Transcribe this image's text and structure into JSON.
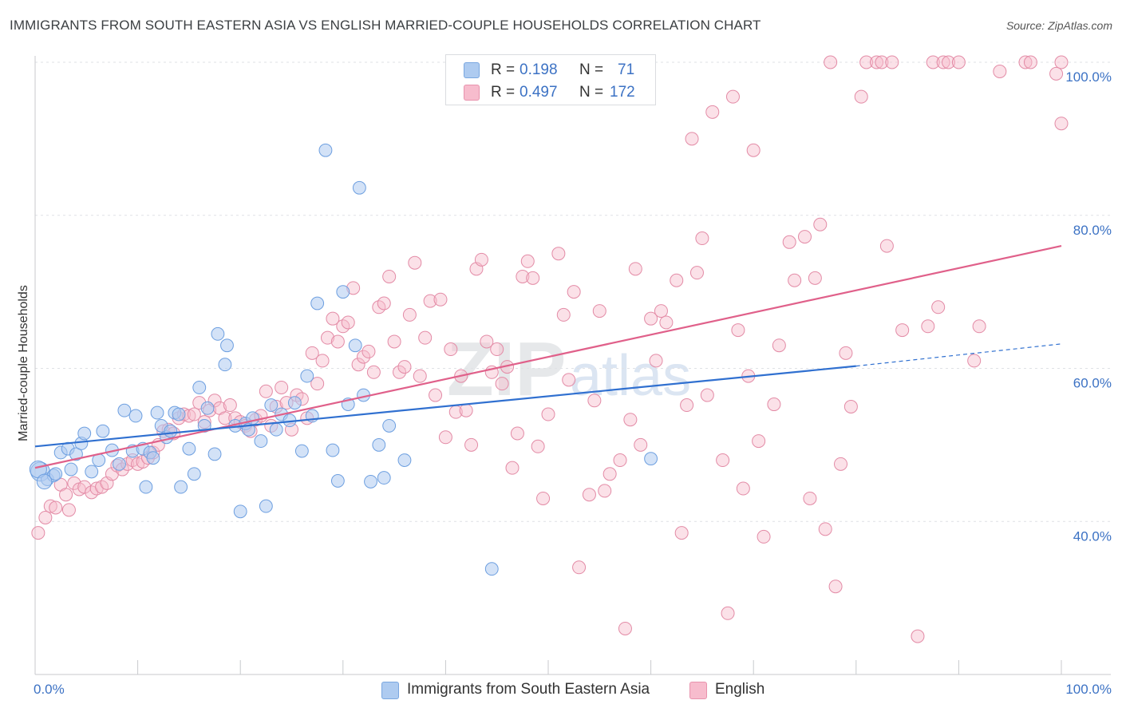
{
  "header": {
    "title": "IMMIGRANTS FROM SOUTH EASTERN ASIA VS ENGLISH MARRIED-COUPLE HOUSEHOLDS CORRELATION CHART",
    "source": "Source: ZipAtlas.com"
  },
  "legend": {
    "rows": [
      {
        "r_label": "R =",
        "r_value": "0.198",
        "n_label": "N =",
        "n_value": "71",
        "color": "#aecbf0"
      },
      {
        "r_label": "R =",
        "r_value": "0.497",
        "n_label": "N =",
        "n_value": "172",
        "color": "#f7bccd"
      }
    ]
  },
  "bottom_legend": {
    "items": [
      {
        "label": "Immigrants from South Eastern Asia",
        "color": "#aecbf0"
      },
      {
        "label": "English",
        "color": "#f7bccd"
      }
    ]
  },
  "watermark": {
    "zip": "ZIP",
    "atlas": "atlas"
  },
  "chart_data": {
    "type": "scatter",
    "title": "IMMIGRANTS FROM SOUTH EASTERN ASIA VS ENGLISH MARRIED-COUPLE HOUSEHOLDS CORRELATION CHART",
    "xlabel": "",
    "ylabel": "Married-couple Households",
    "xlim": [
      0,
      100
    ],
    "ylim": [
      20,
      100
    ],
    "x_tick_labels": [
      "0.0%",
      "100.0%"
    ],
    "y_tick_labels": [
      "40.0%",
      "60.0%",
      "80.0%",
      "100.0%"
    ],
    "y_ticks": [
      40,
      60,
      80,
      100
    ],
    "grid": true,
    "colors": {
      "blue": "#3070d0",
      "pink": "#e0608a",
      "blue_fill": "#aecbf0",
      "pink_fill": "#f7bccd"
    },
    "series": [
      {
        "name": "Immigrants from South Eastern Asia",
        "color": "#aecbf0",
        "stroke": "#6d9fe0",
        "trend": {
          "x0": 0,
          "y0": 49.8,
          "x1": 80,
          "y1": 60.3,
          "dash_x1": 100,
          "dash_y1": 63.2
        },
        "points": [
          [
            0.5,
            46.5
          ],
          [
            1.2,
            45.5
          ],
          [
            1.8,
            46.0
          ],
          [
            2.5,
            49.0
          ],
          [
            3.2,
            49.5
          ],
          [
            3.5,
            46.8
          ],
          [
            4.0,
            48.8
          ],
          [
            4.5,
            50.2
          ],
          [
            4.8,
            51.5
          ],
          [
            5.5,
            46.5
          ],
          [
            6.2,
            48.0
          ],
          [
            6.6,
            51.8
          ],
          [
            7.5,
            49.3
          ],
          [
            8.2,
            47.5
          ],
          [
            8.7,
            54.5
          ],
          [
            9.5,
            49.2
          ],
          [
            9.8,
            53.8
          ],
          [
            10.5,
            49.5
          ],
          [
            10.8,
            44.5
          ],
          [
            11.2,
            49.0
          ],
          [
            11.5,
            48.3
          ],
          [
            11.9,
            54.2
          ],
          [
            12.3,
            52.5
          ],
          [
            12.8,
            51.0
          ],
          [
            13.2,
            51.8
          ],
          [
            13.6,
            54.2
          ],
          [
            14.0,
            54.0
          ],
          [
            14.2,
            44.5
          ],
          [
            15.0,
            49.5
          ],
          [
            15.5,
            46.2
          ],
          [
            16.0,
            57.5
          ],
          [
            16.5,
            52.5
          ],
          [
            16.8,
            54.8
          ],
          [
            17.5,
            48.8
          ],
          [
            17.8,
            64.5
          ],
          [
            18.5,
            60.5
          ],
          [
            18.7,
            63.0
          ],
          [
            19.5,
            52.5
          ],
          [
            20.0,
            41.3
          ],
          [
            20.5,
            52.8
          ],
          [
            20.8,
            52.0
          ],
          [
            21.2,
            53.5
          ],
          [
            22.0,
            50.5
          ],
          [
            22.5,
            42.0
          ],
          [
            23.0,
            55.2
          ],
          [
            23.5,
            52.0
          ],
          [
            24.0,
            54.0
          ],
          [
            24.8,
            53.2
          ],
          [
            25.3,
            55.5
          ],
          [
            26.0,
            49.2
          ],
          [
            26.5,
            59.0
          ],
          [
            27.0,
            53.8
          ],
          [
            27.5,
            68.5
          ],
          [
            28.3,
            88.5
          ],
          [
            29.0,
            49.3
          ],
          [
            29.5,
            45.3
          ],
          [
            30.0,
            70.0
          ],
          [
            30.5,
            55.3
          ],
          [
            31.2,
            63.0
          ],
          [
            31.6,
            83.6
          ],
          [
            32.0,
            56.5
          ],
          [
            32.7,
            45.2
          ],
          [
            33.5,
            50.0
          ],
          [
            34.0,
            45.7
          ],
          [
            34.5,
            52.5
          ],
          [
            36.0,
            48.0
          ],
          [
            44.5,
            33.8
          ],
          [
            60.0,
            48.2
          ],
          [
            0.3,
            46.8
          ],
          [
            0.9,
            45.2
          ],
          [
            2.0,
            46.2
          ]
        ],
        "sizes": [
          18,
          12,
          12,
          12,
          12,
          12,
          12,
          12,
          12,
          12,
          12,
          12,
          12,
          12,
          12,
          12,
          12,
          12,
          12,
          12,
          12,
          12,
          12,
          12,
          12,
          12,
          12,
          12,
          12,
          12,
          12,
          12,
          12,
          12,
          12,
          12,
          12,
          12,
          12,
          12,
          12,
          12,
          12,
          12,
          12,
          12,
          12,
          12,
          12,
          12,
          12,
          12,
          12,
          12,
          12,
          12,
          12,
          12,
          12,
          12,
          12,
          12,
          12,
          12,
          12,
          12,
          12,
          12,
          16,
          14,
          12
        ]
      },
      {
        "name": "English",
        "color": "#f7bccd",
        "stroke": "#e38ba6",
        "trend": {
          "x0": 0,
          "y0": 47.0,
          "x1": 100,
          "y1": 76.0
        },
        "points": [
          [
            0.3,
            38.5
          ],
          [
            1.0,
            40.5
          ],
          [
            1.5,
            42.0
          ],
          [
            2.0,
            41.8
          ],
          [
            2.5,
            44.8
          ],
          [
            3.0,
            43.5
          ],
          [
            3.3,
            41.5
          ],
          [
            3.8,
            45.0
          ],
          [
            4.3,
            44.2
          ],
          [
            4.8,
            44.5
          ],
          [
            5.5,
            43.8
          ],
          [
            6.0,
            44.3
          ],
          [
            6.5,
            44.5
          ],
          [
            7.0,
            45.0
          ],
          [
            7.5,
            46.2
          ],
          [
            8.0,
            47.3
          ],
          [
            8.5,
            46.8
          ],
          [
            9.0,
            47.5
          ],
          [
            9.5,
            48.0
          ],
          [
            10.0,
            47.5
          ],
          [
            10.5,
            47.8
          ],
          [
            11.0,
            48.3
          ],
          [
            11.5,
            49.0
          ],
          [
            12.0,
            50.0
          ],
          [
            12.5,
            51.8
          ],
          [
            13.0,
            52.0
          ],
          [
            13.5,
            51.5
          ],
          [
            14.0,
            53.5
          ],
          [
            14.5,
            54.0
          ],
          [
            15.0,
            53.8
          ],
          [
            15.5,
            54.0
          ],
          [
            16.0,
            55.5
          ],
          [
            16.5,
            53.0
          ],
          [
            17.0,
            54.5
          ],
          [
            17.5,
            55.8
          ],
          [
            18.0,
            54.8
          ],
          [
            18.5,
            53.5
          ],
          [
            19.0,
            55.2
          ],
          [
            19.5,
            53.5
          ],
          [
            20.0,
            53.0
          ],
          [
            20.5,
            52.5
          ],
          [
            21.0,
            51.8
          ],
          [
            21.5,
            53.3
          ],
          [
            22.0,
            53.8
          ],
          [
            22.5,
            57.0
          ],
          [
            23.0,
            52.5
          ],
          [
            23.5,
            55.0
          ],
          [
            24.0,
            57.5
          ],
          [
            24.5,
            55.5
          ],
          [
            25.0,
            52.0
          ],
          [
            25.5,
            56.5
          ],
          [
            26.0,
            56.0
          ],
          [
            26.5,
            53.5
          ],
          [
            27.0,
            62.0
          ],
          [
            27.5,
            58.0
          ],
          [
            28.0,
            61.0
          ],
          [
            28.5,
            64.0
          ],
          [
            29.0,
            66.5
          ],
          [
            29.5,
            63.5
          ],
          [
            30.0,
            65.5
          ],
          [
            30.5,
            66.0
          ],
          [
            31.0,
            70.5
          ],
          [
            31.5,
            60.5
          ],
          [
            32.0,
            61.5
          ],
          [
            32.5,
            62.2
          ],
          [
            33.0,
            59.5
          ],
          [
            33.5,
            68.0
          ],
          [
            34.0,
            68.5
          ],
          [
            34.5,
            72.0
          ],
          [
            35.0,
            63.5
          ],
          [
            35.5,
            59.5
          ],
          [
            36.0,
            60.2
          ],
          [
            36.5,
            67.0
          ],
          [
            37.0,
            73.8
          ],
          [
            37.5,
            59.0
          ],
          [
            38.0,
            64.0
          ],
          [
            38.5,
            68.8
          ],
          [
            39.0,
            56.5
          ],
          [
            39.5,
            69.0
          ],
          [
            40.0,
            51.0
          ],
          [
            40.5,
            62.5
          ],
          [
            41.0,
            54.3
          ],
          [
            41.5,
            59.0
          ],
          [
            42.0,
            54.5
          ],
          [
            42.5,
            50.0
          ],
          [
            43.0,
            73.0
          ],
          [
            43.5,
            74.2
          ],
          [
            44.0,
            63.5
          ],
          [
            44.5,
            59.5
          ],
          [
            45.0,
            62.5
          ],
          [
            45.5,
            58.0
          ],
          [
            46.0,
            60.2
          ],
          [
            46.5,
            47.0
          ],
          [
            47.0,
            51.5
          ],
          [
            47.5,
            72.0
          ],
          [
            48.0,
            74.0
          ],
          [
            48.5,
            71.8
          ],
          [
            49.0,
            49.8
          ],
          [
            49.5,
            43.0
          ],
          [
            50.0,
            54.0
          ],
          [
            51.0,
            75.0
          ],
          [
            51.5,
            67.0
          ],
          [
            52.0,
            58.5
          ],
          [
            52.5,
            70.0
          ],
          [
            53.0,
            34.0
          ],
          [
            54.0,
            43.5
          ],
          [
            54.5,
            55.8
          ],
          [
            55.0,
            67.5
          ],
          [
            55.5,
            44.0
          ],
          [
            56.0,
            46.2
          ],
          [
            57.0,
            48.0
          ],
          [
            57.5,
            26.0
          ],
          [
            58.0,
            53.3
          ],
          [
            58.5,
            73.0
          ],
          [
            59.0,
            50.0
          ],
          [
            60.0,
            66.5
          ],
          [
            60.5,
            61.0
          ],
          [
            61.0,
            67.5
          ],
          [
            61.5,
            66.0
          ],
          [
            62.5,
            71.5
          ],
          [
            63.0,
            38.5
          ],
          [
            63.5,
            55.2
          ],
          [
            64.0,
            90.0
          ],
          [
            64.5,
            72.5
          ],
          [
            65.0,
            77.0
          ],
          [
            65.5,
            56.5
          ],
          [
            66.0,
            93.5
          ],
          [
            67.0,
            48.0
          ],
          [
            67.5,
            28.0
          ],
          [
            68.0,
            95.5
          ],
          [
            68.5,
            65.0
          ],
          [
            69.0,
            44.3
          ],
          [
            69.5,
            59.0
          ],
          [
            70.0,
            88.5
          ],
          [
            70.5,
            50.5
          ],
          [
            71.0,
            38.0
          ],
          [
            72.0,
            55.3
          ],
          [
            72.5,
            63.0
          ],
          [
            73.5,
            76.5
          ],
          [
            74.0,
            71.5
          ],
          [
            75.0,
            77.2
          ],
          [
            75.5,
            43.0
          ],
          [
            76.0,
            71.8
          ],
          [
            76.5,
            78.8
          ],
          [
            77.0,
            39.0
          ],
          [
            77.5,
            100
          ],
          [
            78.0,
            31.5
          ],
          [
            78.5,
            47.5
          ],
          [
            79.0,
            62.0
          ],
          [
            79.5,
            55.0
          ],
          [
            80.5,
            95.5
          ],
          [
            81.0,
            100
          ],
          [
            82.0,
            100
          ],
          [
            82.5,
            100
          ],
          [
            83.0,
            76.0
          ],
          [
            83.5,
            100
          ],
          [
            84.5,
            65.0
          ],
          [
            86.0,
            25.0
          ],
          [
            87.0,
            65.5
          ],
          [
            87.5,
            100
          ],
          [
            88.0,
            68.0
          ],
          [
            88.5,
            100
          ],
          [
            89.0,
            100
          ],
          [
            90.0,
            100
          ],
          [
            91.5,
            61.0
          ],
          [
            92.0,
            65.5
          ],
          [
            94.0,
            98.8
          ],
          [
            96.5,
            100
          ],
          [
            97.0,
            100
          ],
          [
            100,
            92.0
          ],
          [
            100,
            100
          ],
          [
            99.5,
            98.5
          ]
        ]
      }
    ]
  }
}
